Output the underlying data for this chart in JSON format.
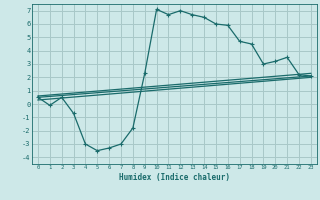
{
  "title": "",
  "xlabel": "Humidex (Indice chaleur)",
  "bg_color": "#cde8e8",
  "grid_color": "#a8c8c8",
  "line_color": "#1a6b6b",
  "xlim": [
    -0.5,
    23.5
  ],
  "ylim": [
    -4.5,
    7.5
  ],
  "xticks": [
    0,
    1,
    2,
    3,
    4,
    5,
    6,
    7,
    8,
    9,
    10,
    11,
    12,
    13,
    14,
    15,
    16,
    17,
    18,
    19,
    20,
    21,
    22,
    23
  ],
  "yticks": [
    -4,
    -3,
    -2,
    -1,
    0,
    1,
    2,
    3,
    4,
    5,
    6,
    7
  ],
  "main_x": [
    0,
    1,
    2,
    3,
    4,
    5,
    6,
    7,
    8,
    9,
    10,
    11,
    12,
    13,
    14,
    15,
    16,
    17,
    18,
    19,
    20,
    21,
    22,
    23
  ],
  "main_y": [
    0.5,
    -0.1,
    0.5,
    -0.7,
    -3.0,
    -3.5,
    -3.3,
    -3.0,
    -1.8,
    2.3,
    7.1,
    6.7,
    7.0,
    6.7,
    6.5,
    6.0,
    5.9,
    4.7,
    4.5,
    3.0,
    3.2,
    3.5,
    2.2,
    2.1
  ],
  "line1_x": [
    0,
    23
  ],
  "line1_y": [
    0.5,
    2.1
  ],
  "line2_x": [
    0,
    23
  ],
  "line2_y": [
    0.6,
    2.3
  ],
  "line3_x": [
    0,
    23
  ],
  "line3_y": [
    0.3,
    2.0
  ]
}
